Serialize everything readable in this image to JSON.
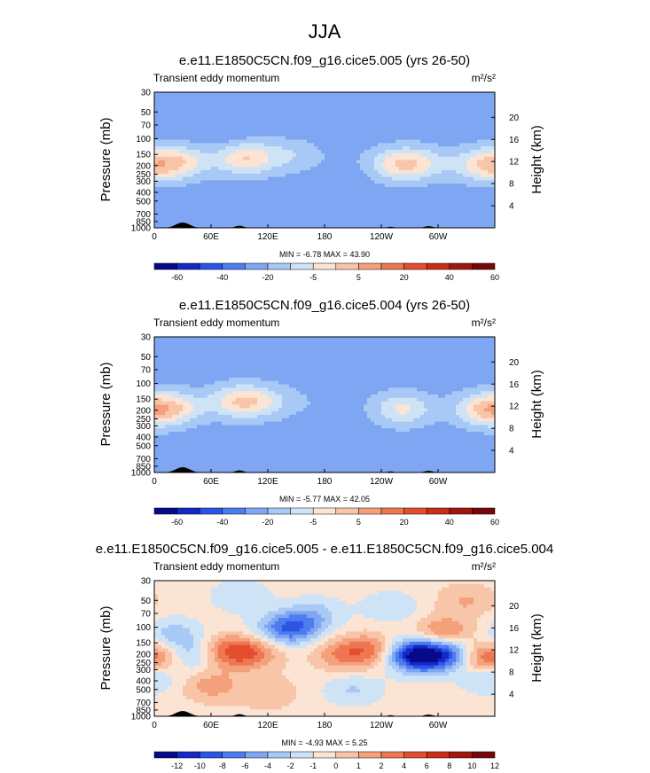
{
  "figure": {
    "title": "JJA",
    "palette": [
      "#08088a",
      "#1428c8",
      "#2c55e6",
      "#4c7cf0",
      "#7ea6f3",
      "#a8c8f5",
      "#cfe3f7",
      "#fbe4d4",
      "#f8c5a8",
      "#f4a07a",
      "#ee7650",
      "#e24e2e",
      "#c82e18",
      "#a0180c",
      "#780808"
    ]
  },
  "chart_data": [
    {
      "type": "heatmap",
      "title": "e.e11.E1850C5CN.f09_g16.cice5.005 (yrs 26-50)",
      "left_label": "Transient eddy momentum",
      "units_label": "m²/s²",
      "ylabel": "Pressure (mb)",
      "ylabel_right": "Height (km)",
      "x_ticks": [
        "0",
        "60E",
        "120E",
        "180",
        "120W",
        "60W"
      ],
      "y_ticks": [
        "30",
        "50",
        "70",
        "100",
        "150",
        "200",
        "250",
        "300",
        "400",
        "500",
        "700",
        "850",
        "1000"
      ],
      "y_right_ticks": [
        "4",
        "8",
        "12",
        "16",
        "20"
      ],
      "minmax_text": "MIN = -6.78  MAX = 43.90",
      "colorbar_levels": [
        "-60",
        "-40",
        "-20",
        "-5",
        "5",
        "20",
        "40",
        "60"
      ],
      "field": {
        "background": 4,
        "blobs": [
          {
            "lon": 30,
            "p": 180,
            "r": 1.1
          },
          {
            "lon": 95,
            "p": 165,
            "r": 1.7
          },
          {
            "lon": 140,
            "p": 155,
            "r": 0.6
          },
          {
            "lon": 255,
            "p": 195,
            "r": 1.25
          },
          {
            "lon": 280,
            "p": 190,
            "r": 1.05
          },
          {
            "lon": 345,
            "p": 195,
            "r": 1.3
          },
          {
            "lon": 165,
            "p": 160,
            "r": 0.15
          },
          {
            "lon": 10,
            "p": 195,
            "r": 0.9
          },
          {
            "lon": 75,
            "p": 95,
            "r": -0.25
          },
          {
            "lon": 200,
            "p": 320,
            "r": -0.15
          }
        ]
      }
    },
    {
      "type": "heatmap",
      "title": "e.e11.E1850C5CN.f09_g16.cice5.004 (yrs 26-50)",
      "left_label": "Transient eddy momentum",
      "units_label": "m²/s²",
      "ylabel": "Pressure (mb)",
      "ylabel_right": "Height (km)",
      "x_ticks": [
        "0",
        "60E",
        "120E",
        "180",
        "120W",
        "60W"
      ],
      "y_ticks": [
        "30",
        "50",
        "70",
        "100",
        "150",
        "200",
        "250",
        "300",
        "400",
        "500",
        "700",
        "850",
        "1000"
      ],
      "y_right_ticks": [
        "4",
        "8",
        "12",
        "16",
        "20"
      ],
      "minmax_text": "MIN = -5.77  MAX = 42.05",
      "colorbar_levels": [
        "-60",
        "-40",
        "-20",
        "-5",
        "5",
        "20",
        "40",
        "60"
      ],
      "field": {
        "background": 4,
        "blobs": [
          {
            "lon": 25,
            "p": 185,
            "r": 1.05
          },
          {
            "lon": 90,
            "p": 160,
            "r": 1.6
          },
          {
            "lon": 120,
            "p": 160,
            "r": 0.7
          },
          {
            "lon": 262,
            "p": 195,
            "r": 1.35
          },
          {
            "lon": 345,
            "p": 195,
            "r": 1.25
          },
          {
            "lon": 5,
            "p": 200,
            "r": 0.95
          },
          {
            "lon": 165,
            "p": 165,
            "r": 0.15
          },
          {
            "lon": 200,
            "p": 330,
            "r": -0.15
          }
        ]
      }
    },
    {
      "type": "heatmap",
      "title": "e.e11.E1850C5CN.f09_g16.cice5.005 - e.e11.E1850C5CN.f09_g16.cice5.004",
      "left_label": "Transient eddy momentum",
      "units_label": "m²/s²",
      "ylabel": "Pressure (mb)",
      "ylabel_right": "Height (km)",
      "x_ticks": [
        "0",
        "60E",
        "120E",
        "180",
        "120W",
        "60W"
      ],
      "y_ticks": [
        "30",
        "50",
        "70",
        "100",
        "150",
        "200",
        "250",
        "300",
        "400",
        "500",
        "700",
        "850",
        "1000"
      ],
      "y_right_ticks": [
        "4",
        "8",
        "12",
        "16",
        "20"
      ],
      "minmax_text": "MIN = -4.93  MAX = 5.25",
      "colorbar_levels": [
        "-12",
        "-10",
        "-8",
        "-6",
        "-4",
        "-2",
        "-1",
        "0",
        "1",
        "2",
        "4",
        "6",
        "8",
        "10",
        "12"
      ],
      "field": {
        "background": 7,
        "blobs": [
          {
            "lon": 40,
            "p": 210,
            "r": -1.5
          },
          {
            "lon": 75,
            "p": 190,
            "r": 1.7
          },
          {
            "lon": 105,
            "p": 190,
            "r": 1.3
          },
          {
            "lon": 130,
            "p": 110,
            "r": -1.0
          },
          {
            "lon": 150,
            "p": 100,
            "r": -1.6
          },
          {
            "lon": 200,
            "p": 200,
            "r": 1.3
          },
          {
            "lon": 235,
            "p": 180,
            "r": 1.4
          },
          {
            "lon": 270,
            "p": 200,
            "r": -2.2
          },
          {
            "lon": 285,
            "p": 210,
            "r": -1.8
          },
          {
            "lon": 305,
            "p": 120,
            "r": 1.6
          },
          {
            "lon": 315,
            "p": 200,
            "r": -2.6
          },
          {
            "lon": 340,
            "p": 220,
            "r": 2.0
          },
          {
            "lon": 10,
            "p": 230,
            "r": 1.2
          },
          {
            "lon": 20,
            "p": 120,
            "r": -1.0
          },
          {
            "lon": 60,
            "p": 450,
            "r": 1.0
          },
          {
            "lon": 170,
            "p": 70,
            "r": -0.8
          },
          {
            "lon": 250,
            "p": 60,
            "r": -0.7
          },
          {
            "lon": 90,
            "p": 45,
            "r": -0.7
          },
          {
            "lon": 330,
            "p": 50,
            "r": 0.8
          },
          {
            "lon": 210,
            "p": 500,
            "r": -0.8
          },
          {
            "lon": 355,
            "p": 350,
            "r": -1.2
          },
          {
            "lon": 120,
            "p": 550,
            "r": 0.7
          }
        ]
      }
    }
  ]
}
